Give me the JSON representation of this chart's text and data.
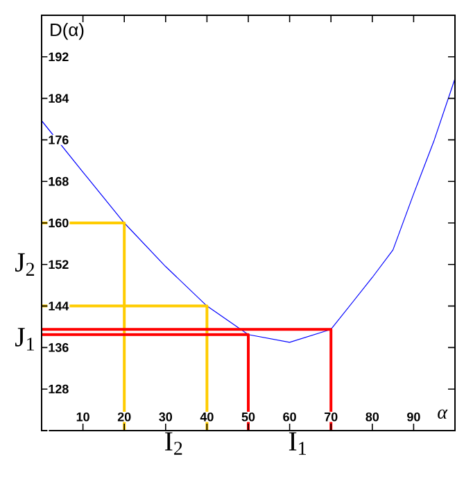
{
  "chart_data": {
    "type": "line",
    "ylabel": "D(α)",
    "xlabel": "α",
    "xlim": [
      0,
      100
    ],
    "ylim": [
      120,
      200
    ],
    "xticks": [
      10,
      20,
      30,
      40,
      50,
      60,
      70,
      80,
      90
    ],
    "yticks": [
      {
        "value": 120,
        "label": null
      },
      128,
      136,
      144,
      152,
      160,
      168,
      176,
      184,
      192
    ],
    "series": [
      {
        "color": "#0000ff",
        "x": [
          0,
          10,
          20,
          30,
          40,
          50,
          60,
          70,
          80,
          85,
          90,
          95,
          100
        ],
        "values": [
          179.7,
          169.8,
          160,
          151.6,
          144,
          138.5,
          137,
          139.5,
          149.5,
          154.8,
          165.6,
          176,
          187.8
        ]
      },
      {
        "color": "#ffcc00",
        "x": [
          0,
          20,
          20
        ],
        "values": [
          160,
          160,
          120
        ]
      },
      {
        "color": "#ffcc00",
        "x": [
          0,
          40,
          40
        ],
        "values": [
          144,
          144,
          120
        ]
      },
      {
        "color": "#ff0000",
        "x": [
          0,
          50,
          50
        ],
        "values": [
          138.5,
          138.5,
          120
        ]
      },
      {
        "color": "#ff0000",
        "x": [
          0,
          70,
          70
        ],
        "values": [
          139.5,
          139.5,
          120
        ]
      }
    ],
    "annotations": [
      "J$_{2}$",
      "J$_{1}$",
      "I$_{2}$",
      "I$_{1}$"
    ]
  }
}
